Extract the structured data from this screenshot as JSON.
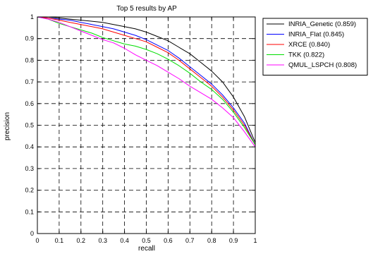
{
  "chart_data": {
    "type": "line",
    "title": "Top 5 results by AP",
    "xlabel": "recall",
    "ylabel": "precision",
    "xlim": [
      0,
      1
    ],
    "ylim": [
      0,
      1
    ],
    "xticks": [
      "0",
      "0.1",
      "0.2",
      "0.3",
      "0.4",
      "0.5",
      "0.6",
      "0.7",
      "0.8",
      "0.9",
      "1"
    ],
    "yticks": [
      "0",
      "0.1",
      "0.2",
      "0.3",
      "0.4",
      "0.5",
      "0.6",
      "0.7",
      "0.8",
      "0.9",
      "1"
    ],
    "grid": true,
    "grid_style": "dashed",
    "legend_position": "outside-right",
    "series": [
      {
        "name": "INRIA_Genetic (0.859)",
        "color": "#000000",
        "points": [
          [
            0,
            1
          ],
          [
            0.05,
            1
          ],
          [
            0.1,
            0.995
          ],
          [
            0.15,
            0.99
          ],
          [
            0.2,
            0.985
          ],
          [
            0.25,
            0.98
          ],
          [
            0.3,
            0.975
          ],
          [
            0.35,
            0.965
          ],
          [
            0.4,
            0.955
          ],
          [
            0.45,
            0.945
          ],
          [
            0.5,
            0.93
          ],
          [
            0.55,
            0.91
          ],
          [
            0.6,
            0.89
          ],
          [
            0.65,
            0.86
          ],
          [
            0.7,
            0.83
          ],
          [
            0.75,
            0.79
          ],
          [
            0.8,
            0.75
          ],
          [
            0.85,
            0.7
          ],
          [
            0.9,
            0.63
          ],
          [
            0.95,
            0.54
          ],
          [
            1,
            0.42
          ]
        ]
      },
      {
        "name": "INRIA_Flat (0.845)",
        "color": "#0000ff",
        "points": [
          [
            0,
            1
          ],
          [
            0.05,
            0.995
          ],
          [
            0.1,
            0.99
          ],
          [
            0.15,
            0.985
          ],
          [
            0.2,
            0.975
          ],
          [
            0.25,
            0.965
          ],
          [
            0.3,
            0.955
          ],
          [
            0.35,
            0.945
          ],
          [
            0.4,
            0.93
          ],
          [
            0.45,
            0.915
          ],
          [
            0.5,
            0.895
          ],
          [
            0.55,
            0.87
          ],
          [
            0.6,
            0.845
          ],
          [
            0.65,
            0.81
          ],
          [
            0.7,
            0.77
          ],
          [
            0.75,
            0.73
          ],
          [
            0.8,
            0.69
          ],
          [
            0.85,
            0.64
          ],
          [
            0.9,
            0.58
          ],
          [
            0.95,
            0.51
          ],
          [
            1,
            0.41
          ]
        ]
      },
      {
        "name": "XRCE (0.840)",
        "color": "#ff0000",
        "points": [
          [
            0,
            1
          ],
          [
            0.05,
            0.995
          ],
          [
            0.1,
            0.985
          ],
          [
            0.15,
            0.975
          ],
          [
            0.2,
            0.965
          ],
          [
            0.25,
            0.955
          ],
          [
            0.3,
            0.945
          ],
          [
            0.35,
            0.93
          ],
          [
            0.4,
            0.915
          ],
          [
            0.45,
            0.9
          ],
          [
            0.5,
            0.885
          ],
          [
            0.55,
            0.86
          ],
          [
            0.6,
            0.835
          ],
          [
            0.65,
            0.8
          ],
          [
            0.7,
            0.76
          ],
          [
            0.75,
            0.72
          ],
          [
            0.8,
            0.68
          ],
          [
            0.85,
            0.63
          ],
          [
            0.9,
            0.57
          ],
          [
            0.95,
            0.5
          ],
          [
            1,
            0.41
          ]
        ]
      },
      {
        "name": "TKK (0.822)",
        "color": "#00dd00",
        "points": [
          [
            0,
            1
          ],
          [
            0.05,
            0.99
          ],
          [
            0.1,
            0.97
          ],
          [
            0.15,
            0.955
          ],
          [
            0.2,
            0.94
          ],
          [
            0.25,
            0.925
          ],
          [
            0.3,
            0.905
          ],
          [
            0.35,
            0.89
          ],
          [
            0.4,
            0.875
          ],
          [
            0.45,
            0.865
          ],
          [
            0.5,
            0.85
          ],
          [
            0.55,
            0.83
          ],
          [
            0.6,
            0.805
          ],
          [
            0.65,
            0.775
          ],
          [
            0.7,
            0.74
          ],
          [
            0.75,
            0.7
          ],
          [
            0.8,
            0.665
          ],
          [
            0.85,
            0.62
          ],
          [
            0.9,
            0.56
          ],
          [
            0.95,
            0.49
          ],
          [
            1,
            0.41
          ]
        ]
      },
      {
        "name": "QMUL_LSPCH (0.808)",
        "color": "#ff00ff",
        "points": [
          [
            0,
            1
          ],
          [
            0.05,
            0.99
          ],
          [
            0.1,
            0.975
          ],
          [
            0.15,
            0.955
          ],
          [
            0.2,
            0.935
          ],
          [
            0.25,
            0.915
          ],
          [
            0.3,
            0.895
          ],
          [
            0.35,
            0.88
          ],
          [
            0.4,
            0.855
          ],
          [
            0.45,
            0.825
          ],
          [
            0.5,
            0.8
          ],
          [
            0.55,
            0.775
          ],
          [
            0.6,
            0.745
          ],
          [
            0.65,
            0.715
          ],
          [
            0.7,
            0.68
          ],
          [
            0.75,
            0.65
          ],
          [
            0.8,
            0.62
          ],
          [
            0.85,
            0.58
          ],
          [
            0.9,
            0.535
          ],
          [
            0.95,
            0.47
          ],
          [
            1,
            0.4
          ]
        ]
      }
    ]
  }
}
